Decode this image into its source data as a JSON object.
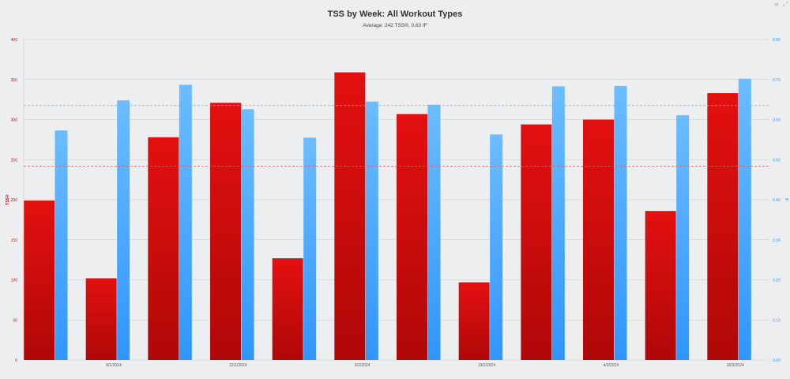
{
  "header": {
    "title": "TSS by Week: All Workout Types",
    "subtitle": "Average: 242 TSS®, 0.63 IF"
  },
  "toolbar": {
    "menu_icon": "menu-icon",
    "expand_icon": "expand-icon"
  },
  "colors": {
    "tss_bar": "#dd1111",
    "tss_bar_dark": "#b20808",
    "if_bar": "#66b8ff",
    "if_bar_dark": "#3399ff",
    "tss_average_line": "#e06060",
    "if_average_line": "#66b8ff",
    "grid": "#c8c8c8",
    "background": "#eceef0"
  },
  "chart_data": {
    "type": "bar",
    "title": "TSS by Week: All Workout Types",
    "subtitle": "Average: 242 TSS®, 0.63 IF",
    "x_tick_labels": [
      "8/1/2024",
      "22/1/2024",
      "5/2/2024",
      "19/2/2024",
      "4/3/2024",
      "18/3/2024"
    ],
    "series": [
      {
        "name": "TSS®",
        "axis": "left",
        "values": [
          199,
          102,
          278,
          321,
          127,
          359,
          307,
          97,
          294,
          300,
          186,
          333
        ]
      },
      {
        "name": "IF",
        "axis": "right",
        "values": [
          0.573,
          0.648,
          0.687,
          0.626,
          0.555,
          0.645,
          0.637,
          0.563,
          0.683,
          0.684,
          0.611,
          0.702
        ]
      }
    ],
    "left_axis": {
      "label": "TSS®",
      "range": [
        0,
        400
      ],
      "ticks": [
        "0",
        "50",
        "100",
        "150",
        "200",
        "250",
        "300",
        "350",
        "400"
      ]
    },
    "right_axis": {
      "label": "IF",
      "range": [
        0,
        0.8
      ],
      "ticks": [
        "0.00",
        "0.10",
        "0.20",
        "0.30",
        "0.40",
        "0.50",
        "0.60",
        "0.70",
        "0.80"
      ]
    },
    "averages": {
      "tss": 242,
      "if": 0.635
    },
    "grid": true,
    "legend": "none"
  }
}
